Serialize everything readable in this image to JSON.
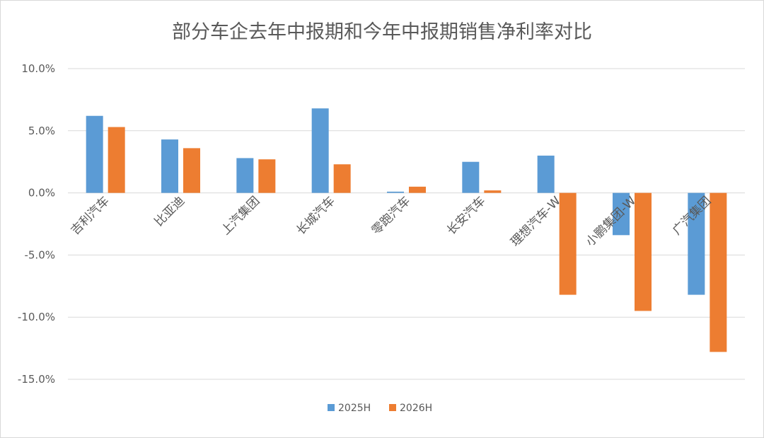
{
  "chart_data": {
    "type": "bar",
    "title": "部分车企去年中报期和今年中报期销售净利率对比",
    "categories": [
      "吉利汽车",
      "比亚迪",
      "上汽集团",
      "长城汽车",
      "零跑汽车",
      "长安汽车",
      "理想汽车-W",
      "小鹏集团-W",
      "广汽集团"
    ],
    "series": [
      {
        "name": "2025H",
        "color": "#5B9BD5",
        "values": [
          6.2,
          4.3,
          2.8,
          6.8,
          0.1,
          2.5,
          3.0,
          -3.4,
          -8.2
        ]
      },
      {
        "name": "2026H",
        "color": "#ED7D31",
        "values": [
          5.3,
          3.6,
          2.7,
          2.3,
          0.5,
          0.2,
          -8.2,
          -9.5,
          -12.8
        ]
      }
    ],
    "ylim": [
      -15,
      10
    ],
    "yticks": [
      10,
      5,
      0,
      -5,
      -10,
      -15
    ],
    "ytick_labels": [
      "10.0%",
      "5.0%",
      "0.0%",
      "-5.0%",
      "-10.0%",
      "-15.0%"
    ],
    "grid": true,
    "legend_position": "bottom"
  }
}
